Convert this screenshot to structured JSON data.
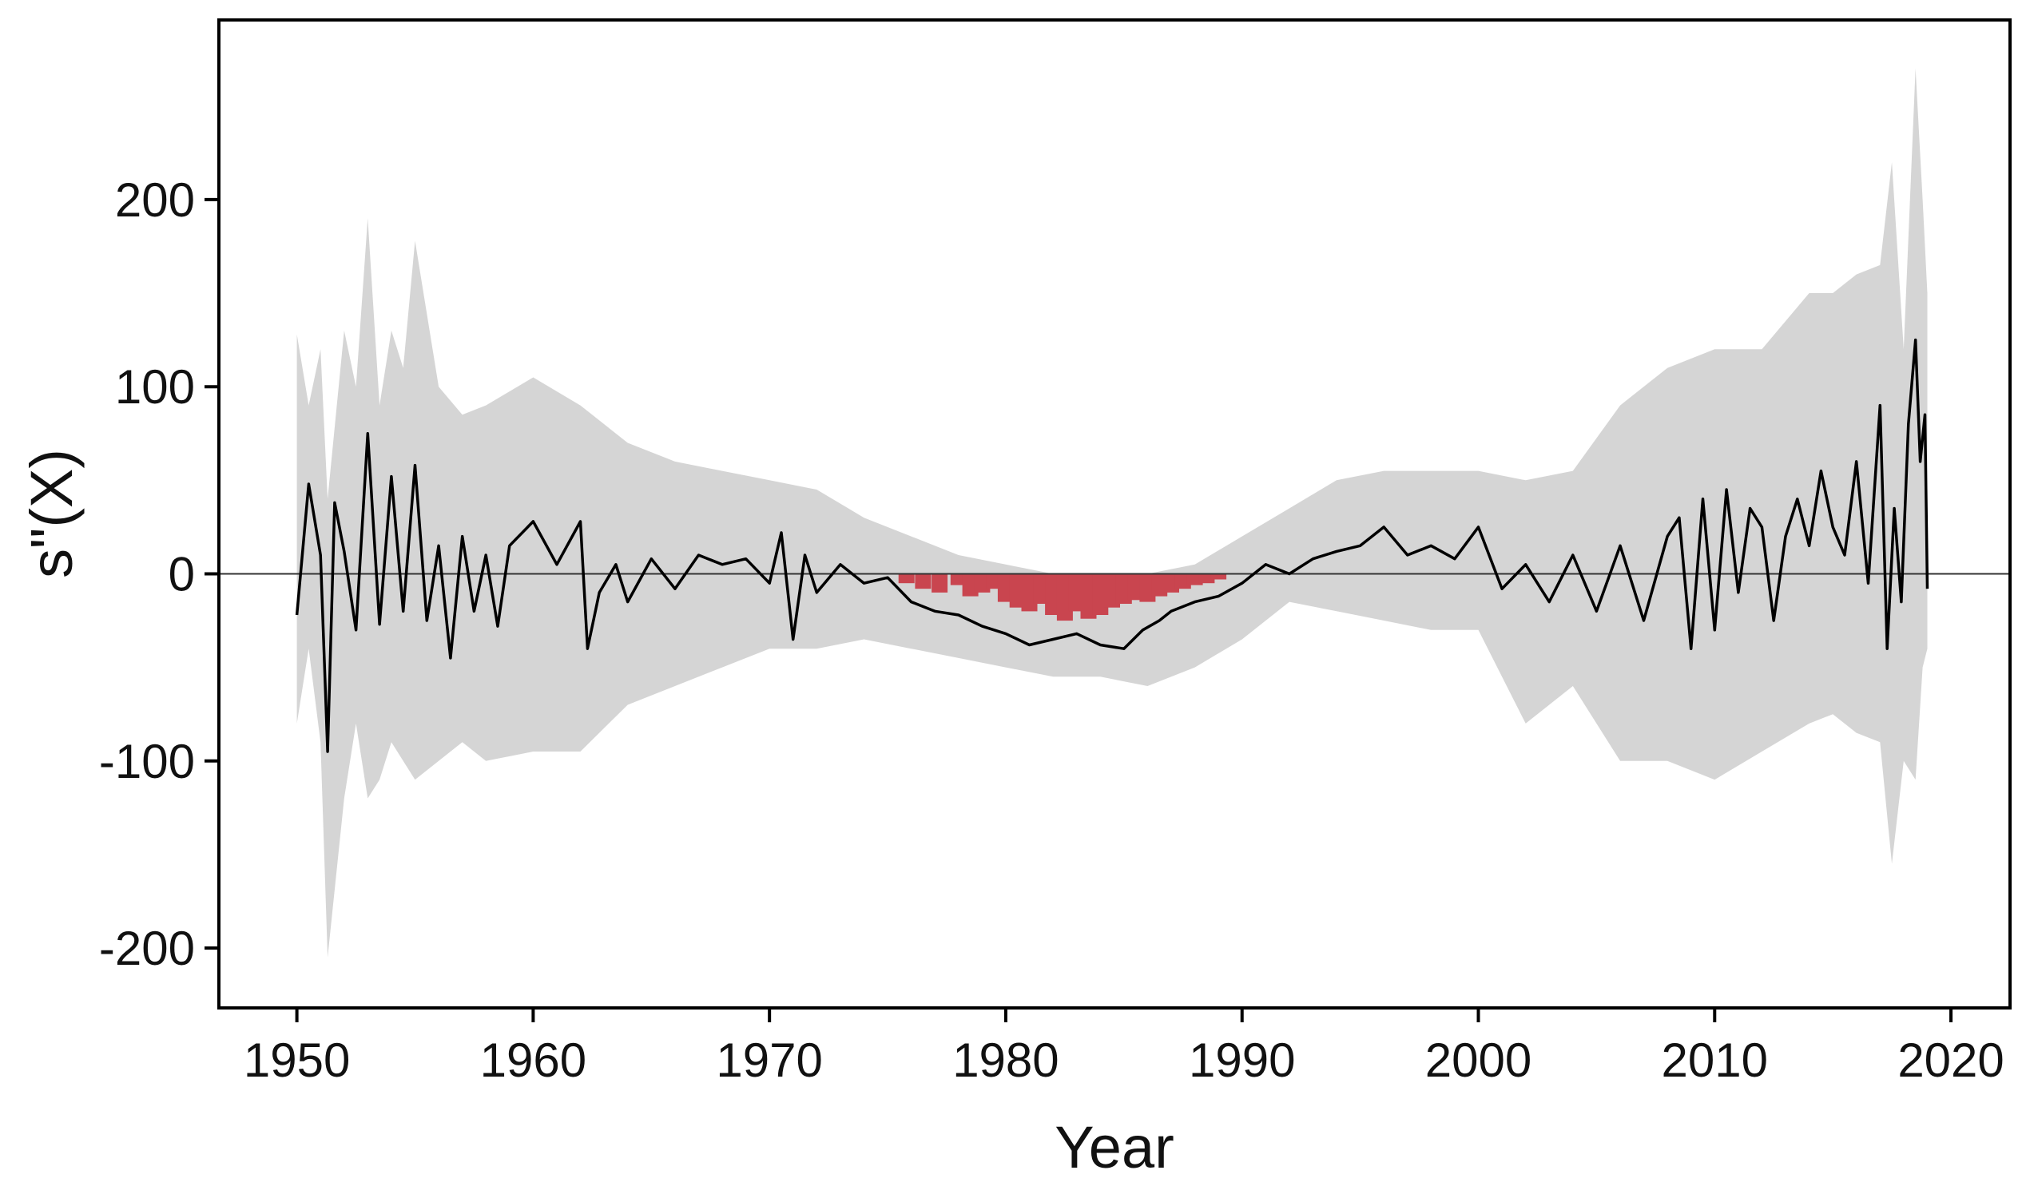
{
  "chart_data": {
    "type": "line",
    "title": "",
    "xlabel": "Year",
    "ylabel": "s\"(X)",
    "xlim": [
      1946.7,
      2022.5
    ],
    "ylim": [
      -232,
      296
    ],
    "xticks": [
      1950,
      1960,
      1970,
      1980,
      1990,
      2000,
      2010,
      2020
    ],
    "yticks": [
      -200,
      -100,
      0,
      100,
      200
    ],
    "xtick_labels": [
      "1950",
      "1960",
      "1970",
      "1980",
      "1990",
      "2000",
      "2010",
      "2020"
    ],
    "ytick_labels": [
      "-200",
      "-100",
      "0",
      "100",
      "200"
    ],
    "grid": false,
    "legend": "none",
    "reference_line_y": 0,
    "colors": {
      "line": "#000000",
      "band": "#d5d5d5",
      "highlight": "#c9454f",
      "frame": "#000000"
    },
    "series": [
      {
        "role": "derivative",
        "x": [
          1950.0,
          1950.5,
          1951.0,
          1951.3,
          1951.6,
          1952.0,
          1952.5,
          1953.0,
          1953.5,
          1954.0,
          1954.5,
          1955.0,
          1955.5,
          1956.0,
          1956.5,
          1957.0,
          1957.5,
          1958.0,
          1958.5,
          1959.0,
          1960.0,
          1961.0,
          1962.0,
          1962.3,
          1962.8,
          1963.5,
          1964.0,
          1965.0,
          1966.0,
          1967.0,
          1968.0,
          1969.0,
          1970.0,
          1970.5,
          1971.0,
          1971.5,
          1972.0,
          1973.0,
          1974.0,
          1975.0,
          1976.0,
          1977.0,
          1978.0,
          1979.0,
          1980.0,
          1981.0,
          1982.0,
          1983.0,
          1984.0,
          1985.0,
          1985.8,
          1986.5,
          1987.0,
          1988.0,
          1989.0,
          1990.0,
          1991.0,
          1992.0,
          1993.0,
          1994.0,
          1995.0,
          1996.0,
          1997.0,
          1998.0,
          1999.0,
          2000.0,
          2001.0,
          2002.0,
          2003.0,
          2004.0,
          2005.0,
          2006.0,
          2007.0,
          2008.0,
          2008.5,
          2009.0,
          2009.5,
          2010.0,
          2010.5,
          2011.0,
          2011.5,
          2012.0,
          2012.5,
          2013.0,
          2013.5,
          2014.0,
          2014.5,
          2015.0,
          2015.5,
          2016.0,
          2016.5,
          2017.0,
          2017.3,
          2017.6,
          2017.9,
          2018.2,
          2018.5,
          2018.7,
          2018.9,
          2019.0
        ],
        "values": [
          -22,
          48,
          10,
          -95,
          38,
          12,
          -30,
          75,
          -27,
          52,
          -20,
          58,
          -25,
          15,
          -45,
          20,
          -20,
          10,
          -28,
          15,
          28,
          5,
          28,
          -40,
          -10,
          5,
          -15,
          8,
          -8,
          10,
          5,
          8,
          -5,
          22,
          -35,
          10,
          -10,
          5,
          -5,
          -2,
          -15,
          -20,
          -22,
          -28,
          -32,
          -38,
          -35,
          -32,
          -38,
          -40,
          -30,
          -25,
          -20,
          -15,
          -12,
          -5,
          5,
          0,
          8,
          12,
          15,
          25,
          10,
          15,
          8,
          25,
          -8,
          5,
          -15,
          10,
          -20,
          15,
          -25,
          20,
          30,
          -40,
          40,
          -30,
          45,
          -10,
          35,
          25,
          -25,
          20,
          40,
          15,
          55,
          25,
          10,
          60,
          -5,
          90,
          -40,
          35,
          -15,
          80,
          125,
          60,
          85,
          -8
        ]
      },
      {
        "role": "ci-upper",
        "x": [
          1950.0,
          1950.5,
          1951.0,
          1951.3,
          1952.0,
          1952.5,
          1953.0,
          1953.5,
          1954.0,
          1954.5,
          1955.0,
          1956.0,
          1957.0,
          1958.0,
          1960.0,
          1962.0,
          1964.0,
          1966.0,
          1968.0,
          1970.0,
          1972.0,
          1974.0,
          1976.0,
          1978.0,
          1980.0,
          1982.0,
          1984.0,
          1986.0,
          1988.0,
          1990.0,
          1992.0,
          1994.0,
          1996.0,
          1998.0,
          2000.0,
          2002.0,
          2004.0,
          2006.0,
          2008.0,
          2010.0,
          2012.0,
          2014.0,
          2015.0,
          2016.0,
          2017.0,
          2017.5,
          2018.0,
          2018.5,
          2018.8,
          2019.0
        ],
        "values": [
          128,
          90,
          120,
          40,
          130,
          100,
          190,
          90,
          130,
          110,
          178,
          100,
          85,
          90,
          105,
          90,
          70,
          60,
          55,
          50,
          45,
          30,
          20,
          10,
          5,
          0,
          0,
          0,
          5,
          20,
          35,
          50,
          55,
          55,
          55,
          50,
          55,
          90,
          110,
          120,
          120,
          150,
          150,
          160,
          165,
          220,
          120,
          270,
          200,
          150
        ]
      },
      {
        "role": "ci-lower",
        "x": [
          1950.0,
          1950.5,
          1951.0,
          1951.3,
          1952.0,
          1952.5,
          1953.0,
          1953.5,
          1954.0,
          1954.5,
          1955.0,
          1956.0,
          1957.0,
          1958.0,
          1960.0,
          1962.0,
          1964.0,
          1966.0,
          1968.0,
          1970.0,
          1972.0,
          1974.0,
          1976.0,
          1978.0,
          1980.0,
          1982.0,
          1984.0,
          1986.0,
          1988.0,
          1990.0,
          1992.0,
          1994.0,
          1996.0,
          1998.0,
          2000.0,
          2002.0,
          2004.0,
          2006.0,
          2008.0,
          2010.0,
          2012.0,
          2014.0,
          2015.0,
          2016.0,
          2017.0,
          2017.5,
          2018.0,
          2018.5,
          2018.8,
          2019.0
        ],
        "values": [
          -80,
          -40,
          -90,
          -205,
          -120,
          -80,
          -120,
          -110,
          -90,
          -100,
          -110,
          -100,
          -90,
          -100,
          -95,
          -95,
          -70,
          -60,
          -50,
          -40,
          -40,
          -35,
          -40,
          -45,
          -50,
          -55,
          -55,
          -60,
          -50,
          -35,
          -15,
          -20,
          -25,
          -30,
          -30,
          -80,
          -60,
          -100,
          -100,
          -110,
          -95,
          -80,
          -75,
          -85,
          -90,
          -155,
          -100,
          -110,
          -50,
          -40
        ]
      },
      {
        "role": "significant-decrease",
        "x": [
          1975.8,
          1976.5,
          1977.2,
          1978.0,
          1978.5,
          1979.0,
          1979.5,
          1980.0,
          1980.5,
          1981.0,
          1981.5,
          1982.0,
          1982.5,
          1983.0,
          1983.5,
          1984.0,
          1984.5,
          1985.0,
          1985.5,
          1986.0,
          1986.5,
          1987.0,
          1987.5,
          1988.0,
          1988.5,
          1989.0
        ],
        "values": [
          -5,
          -8,
          -10,
          -6,
          -12,
          -10,
          -8,
          -15,
          -18,
          -20,
          -16,
          -22,
          -25,
          -20,
          -24,
          -22,
          -18,
          -16,
          -14,
          -15,
          -12,
          -10,
          -8,
          -6,
          -5,
          -3
        ]
      }
    ]
  }
}
